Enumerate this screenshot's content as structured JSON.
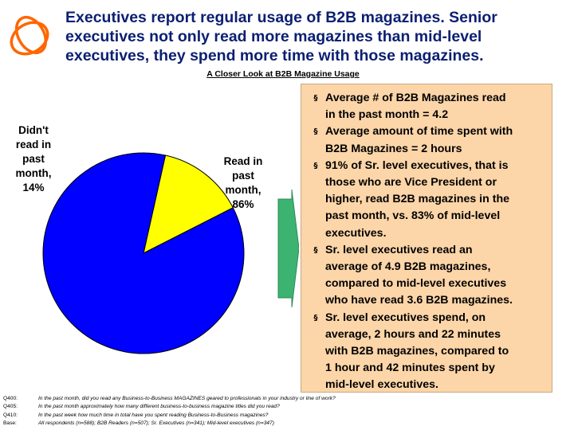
{
  "header": {
    "title_lines": [
      "Executives report regular usage of B2B magazines.  Senior",
      "executives not only read more magazines than mid-level",
      "executives, they spend more time with those magazines."
    ],
    "subtitle": "A Closer Look at B2B Magazine Usage"
  },
  "logo": {
    "icon": "ellipse-swirl-logo",
    "color": "#ff6600"
  },
  "chart_data": {
    "type": "pie",
    "slices": [
      {
        "label_lines": [
          "Didn't",
          "read in",
          "past",
          "month,",
          "14%"
        ],
        "value": 14,
        "color": "#ffff00"
      },
      {
        "label_lines": [
          "Read in",
          "past",
          "month,",
          "86%"
        ],
        "value": 86,
        "color": "#0000ff"
      }
    ]
  },
  "arrow": {
    "icon": "right-arrow",
    "color": "#3cb371"
  },
  "panel": {
    "background": "#fcd5a8",
    "bullet_mark": "§",
    "bullets": [
      [
        "Average # of B2B Magazines read",
        "in the past month = 4.2"
      ],
      [
        "Average amount of time spent with",
        "B2B Magazines = 2 hours"
      ],
      [
        "91% of Sr. level executives, that is",
        "those who are Vice President or",
        "higher, read B2B magazines in the",
        "past month, vs. 83% of mid-level",
        "executives."
      ],
      [
        "Sr. level executives read an",
        "average of 4.9 B2B magazines,",
        "compared to mid-level executives",
        "who have read 3.6 B2B magazines."
      ],
      [
        "Sr. level executives spend, on",
        "average, 2 hours and 22 minutes",
        "with B2B magazines, compared to",
        "1 hour and 42 minutes spent by",
        "mid-level executives."
      ]
    ]
  },
  "footnotes": [
    {
      "code": "Q400:",
      "text": "In the past month, did you read any Business-to-Business MAGAZINES geared to professionals in your industry or line of work?"
    },
    {
      "code": "Q405:",
      "text": "In the past month approximately how many different business-to-business magazine titles did you read?"
    },
    {
      "code": "Q410:",
      "text": "In the past week how much time in total have you spent reading Business-to-Business magazines?"
    },
    {
      "code": "Base:",
      "text": "All respondents (n=588); B2B Readers (n=507); Sr. Executives (n=341); Mid-level executives (n=347)"
    }
  ]
}
